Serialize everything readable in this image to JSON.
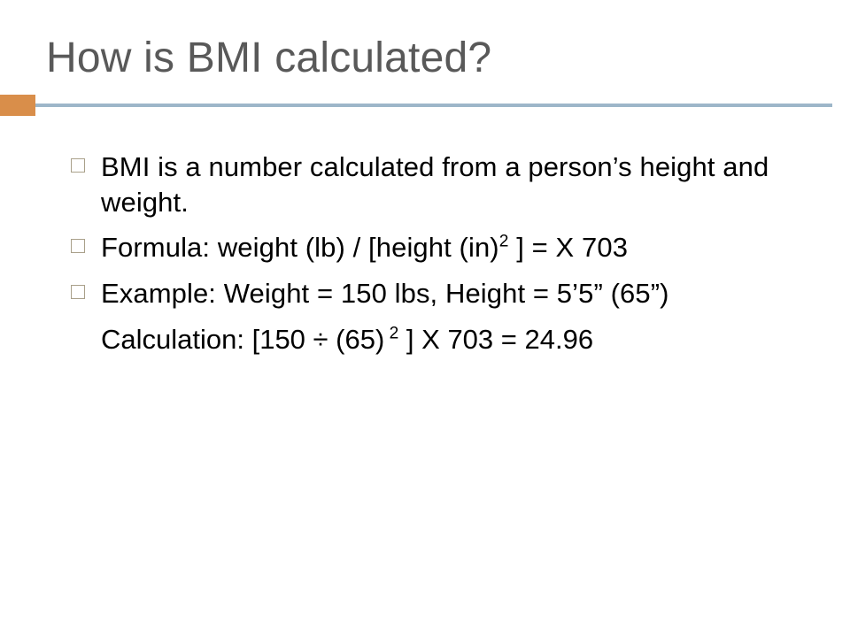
{
  "slide": {
    "title": "How is BMI calculated?",
    "accent": {
      "orange_color": "#d98e4a",
      "line_color": "#9db6c9"
    },
    "title_color": "#595959",
    "text_color": "#000000",
    "bullet_border_color": "#a9a08a",
    "background_color": "#ffffff",
    "bullets": {
      "b0": "BMI is a number calculated from a person’s height and weight.",
      "b1_pre": "Formula: weight (lb) / [height (in)",
      "b1_sup": "2",
      "b1_post": " ] = X 703",
      "b2": "Example: Weight = 150 lbs, Height = 5’5” (65”)",
      "calc_pre": "Calculation: [150 ÷ (65)",
      "calc_sup": " 2",
      "calc_post": " ] X 703 = 24.96"
    },
    "font_family": "Century Gothic",
    "title_fontsize": 48,
    "body_fontsize": 31
  }
}
